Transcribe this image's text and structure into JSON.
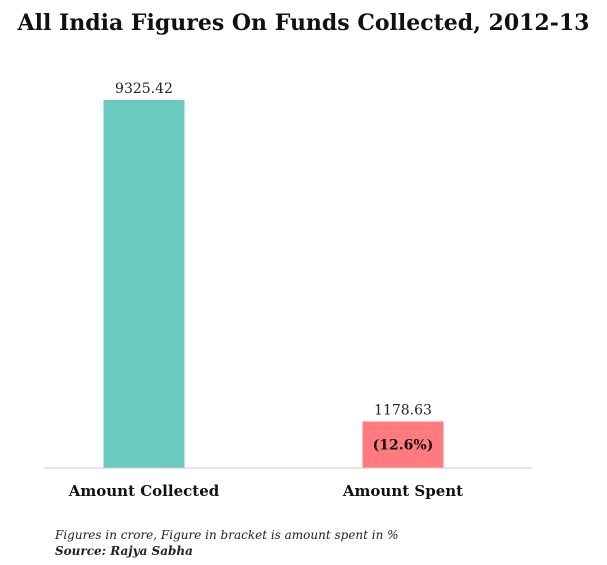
{
  "chart_data": {
    "type": "bar",
    "title": "All India Figures On Funds Collected, 2012-13",
    "categories": [
      "Amount Collected",
      "Amount Spent"
    ],
    "values": [
      9325.42,
      1178.63
    ],
    "value_labels": [
      "9325.42",
      "1178.63"
    ],
    "bar_annotations": [
      "",
      "(12.6%)"
    ],
    "colors": [
      "#68CBBE",
      "#FF7B7F"
    ],
    "ylim": [
      0,
      9325.42
    ],
    "grid": false,
    "legend": "none",
    "xlabel": "",
    "ylabel": ""
  },
  "footnote": {
    "note": "Figures in crore, Figure in bracket is amount spent in %",
    "source": "Source: Rajya Sabha"
  }
}
